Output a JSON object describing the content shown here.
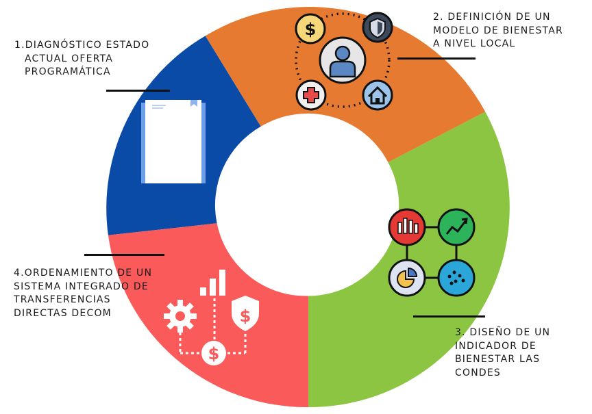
{
  "colors": {
    "segment_blue": "#0a4ba8",
    "segment_orange": "#e77a31",
    "segment_green": "#8bc541",
    "segment_red": "#fb5a5a"
  },
  "steps": [
    {
      "lines": [
        "1.DIAGNÓSTICO ESTADO",
        "ACTUAL OFERTA",
        "PROGRAMÁTICA"
      ],
      "icon": "document-icon"
    },
    {
      "lines": [
        "2. DEFINICIÓN DE UN",
        "MODELO DE BIENESTAR",
        "A NIVEL LOCAL"
      ],
      "icon": "wellbeing-person-icon"
    },
    {
      "lines": [
        "3. DISEÑO DE UN",
        "INDICADOR DE",
        "BIENESTAR LAS",
        "CONDES"
      ],
      "icon": "analytics-icon"
    },
    {
      "lines": [
        "4.ORDENAMIENTO DE UN",
        "SISTEMA INTEGRADO DE",
        "TRANSFERENCIAS",
        "DIRECTAS DECOM"
      ],
      "icon": "money-transfer-icon"
    }
  ]
}
